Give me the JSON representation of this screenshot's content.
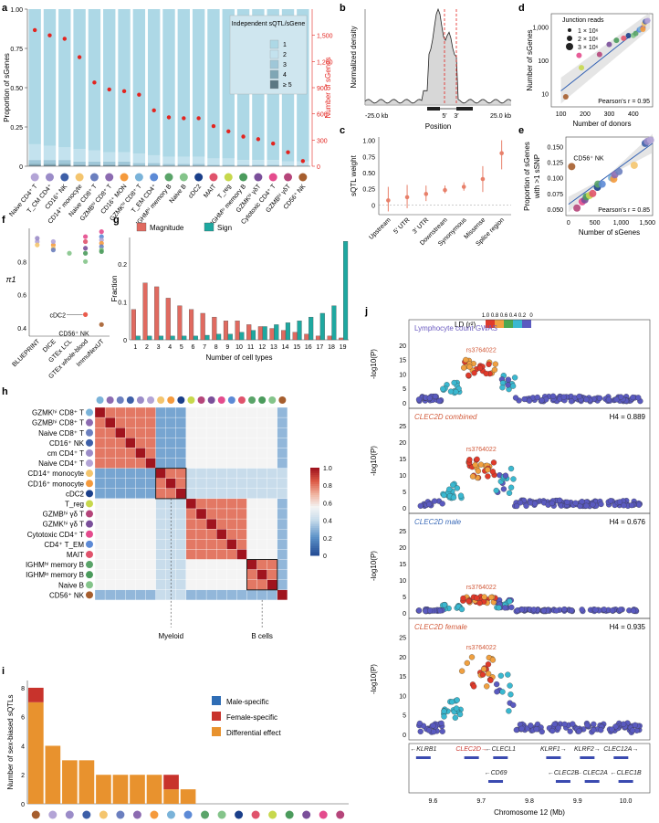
{
  "panel_letters": [
    "a",
    "b",
    "c",
    "d",
    "e",
    "f",
    "g",
    "h",
    "i",
    "j"
  ],
  "chart_data": [
    {
      "panel": "a",
      "type": "bar",
      "ylabel": "Proportion of sGenes",
      "ylabel_right": "Number of sGenes",
      "ylim": [
        0,
        1.0
      ],
      "ylim_right": [
        0,
        1800
      ],
      "yticks": [
        "0",
        "0.25",
        "0.50",
        "0.75",
        "1.00"
      ],
      "yticks_right": [
        "0",
        "300",
        "600",
        "900",
        "1,200",
        "1,500"
      ],
      "legend_title": "Independent sQTL/sGene",
      "legend_labels": [
        "1",
        "2",
        "3",
        "4",
        "≥ 5"
      ],
      "categories": [
        "Naive CD4⁺ T",
        "T_CM CD4⁺",
        "CD16⁺ NK",
        "CD14⁺ monocyte",
        "Naive CD8⁺ T",
        "GZMBʰⁱ CD8⁺ T",
        "CD16⁺ MON",
        "GZMKʰⁱ CD8⁺ T",
        "T_EM CD4⁺",
        "IGHMʰⁱ memory B",
        "Naive B",
        "cDC2",
        "MAIT",
        "T_reg",
        "IGHMˡᵒ memory B",
        "GZMKʰⁱ γδT",
        "Cytotoxic CD4⁺ T",
        "GZMBʰⁱ γδT",
        "CD56⁺ NK"
      ],
      "dot_colors": [
        "#b3a4d6",
        "#9b8cc8",
        "#3d5fa8",
        "#f4c56e",
        "#6b7fbf",
        "#8c6bb1",
        "#f59a3c",
        "#7ab3d9",
        "#5c8ad6",
        "#5aa469",
        "#84c48a",
        "#1a3f8a",
        "#e0536c",
        "#c7d84c",
        "#4b9b5c",
        "#7a4f9a",
        "#e44b8d",
        "#b5457a",
        "#a65e2e"
      ],
      "series": [
        {
          "name": "1",
          "values": [
            0.86,
            0.87,
            0.88,
            0.89,
            0.9,
            0.91,
            0.91,
            0.92,
            0.93,
            0.94,
            0.94,
            0.94,
            0.95,
            0.95,
            0.96,
            0.96,
            0.96,
            0.97,
            0.97
          ]
        },
        {
          "name": "2",
          "values": [
            0.1,
            0.09,
            0.08,
            0.08,
            0.07,
            0.06,
            0.06,
            0.06,
            0.05,
            0.045,
            0.045,
            0.045,
            0.04,
            0.04,
            0.03,
            0.03,
            0.03,
            0.025,
            0.025
          ]
        },
        {
          "name": "3",
          "values": [
            0.025,
            0.025,
            0.025,
            0.02,
            0.02,
            0.02,
            0.02,
            0.015,
            0.015,
            0.01,
            0.01,
            0.01,
            0.01,
            0.01,
            0.008,
            0.008,
            0.008,
            0.004,
            0.004
          ]
        },
        {
          "name": "4",
          "values": [
            0.01,
            0.01,
            0.01,
            0.007,
            0.007,
            0.007,
            0.007,
            0.004,
            0.004,
            0.004,
            0.004,
            0.004,
            0.0,
            0.0,
            0.002,
            0.002,
            0.002,
            0.001,
            0.001
          ]
        },
        {
          "name": "≥ 5",
          "values": [
            0.005,
            0.005,
            0.005,
            0.003,
            0.003,
            0.003,
            0.003,
            0.001,
            0.001,
            0.001,
            0.001,
            0.001,
            0.0,
            0.0,
            0.0,
            0.0,
            0.0,
            0.0,
            0.0
          ]
        }
      ],
      "nsgenes": [
        1560,
        1500,
        1460,
        1250,
        960,
        880,
        860,
        820,
        640,
        560,
        550,
        550,
        460,
        400,
        340,
        310,
        260,
        160,
        60
      ]
    },
    {
      "panel": "b",
      "type": "area",
      "xlabel": "Position",
      "ylabel": "Normalized density",
      "xticks": [
        "-25.0 kb",
        "5′",
        "3′",
        "25.0 kb"
      ]
    },
    {
      "panel": "c",
      "type": "scatter",
      "ylabel": "sQTL weight",
      "yticks": [
        "0",
        "0.25",
        "0.50",
        "0.75",
        "1.00"
      ],
      "ylim": [
        -0.15,
        1.05
      ],
      "categories": [
        "Upstream",
        "5′ UTR",
        "3′ UTR",
        "Downstream",
        "Synonymous",
        "Missense",
        "Splice region"
      ],
      "values": [
        0.07,
        0.12,
        0.17,
        0.23,
        0.28,
        0.4,
        0.8
      ],
      "err_lo": [
        -0.1,
        -0.05,
        0.06,
        0.18,
        0.22,
        0.2,
        0.55
      ],
      "err_hi": [
        0.28,
        0.31,
        0.3,
        0.3,
        0.35,
        0.6,
        1.0
      ]
    },
    {
      "panel": "d",
      "type": "scatter",
      "xlabel": "Number of donors",
      "ylabel": "Number of sGenes",
      "xticks": [
        "100",
        "200",
        "300",
        "400"
      ],
      "yticks": [
        "10",
        "100",
        "1,000"
      ],
      "legend_title": "Junction reads",
      "legend_labels": [
        "1 × 10⁶",
        "2 × 10⁶",
        "3 × 10⁶"
      ],
      "annotation": "Pearson's r = 0.95",
      "points": [
        {
          "x": 120,
          "y": 8,
          "c": "#a65e2e"
        },
        {
          "x": 175,
          "y": 140,
          "c": "#e44b8d"
        },
        {
          "x": 185,
          "y": 60,
          "c": "#c7d84c"
        },
        {
          "x": 260,
          "y": 150,
          "c": "#b5457a"
        },
        {
          "x": 300,
          "y": 300,
          "c": "#7a4f9a"
        },
        {
          "x": 330,
          "y": 400,
          "c": "#4b9b5c"
        },
        {
          "x": 360,
          "y": 460,
          "c": "#e0536c"
        },
        {
          "x": 380,
          "y": 550,
          "c": "#1a3f8a"
        },
        {
          "x": 400,
          "y": 560,
          "c": "#84c48a"
        },
        {
          "x": 410,
          "y": 640,
          "c": "#5aa469"
        },
        {
          "x": 425,
          "y": 820,
          "c": "#5c8ad6"
        },
        {
          "x": 430,
          "y": 880,
          "c": "#7ab3d9"
        },
        {
          "x": 440,
          "y": 960,
          "c": "#8c6bb1"
        },
        {
          "x": 445,
          "y": 1250,
          "c": "#f4c56e"
        },
        {
          "x": 450,
          "y": 1460,
          "c": "#3d5fa8"
        },
        {
          "x": 455,
          "y": 1500,
          "c": "#9b8cc8"
        },
        {
          "x": 460,
          "y": 1560,
          "c": "#b3a4d6"
        },
        {
          "x": 440,
          "y": 860,
          "c": "#f59a3c"
        }
      ]
    },
    {
      "panel": "e",
      "type": "scatter",
      "xlabel": "Number of sGenes",
      "ylabel": "Proportion of sGenes with >1 sSNP",
      "xticks": [
        "0",
        "500",
        "1,000",
        "1,500"
      ],
      "yticks": [
        "0.050",
        "0.075",
        "0.100",
        "0.125",
        "0.150"
      ],
      "annotation": "Pearson's r = 0.85",
      "label": "CD56⁺ NK",
      "points": [
        {
          "x": 60,
          "y": 0.118,
          "c": "#a65e2e"
        },
        {
          "x": 160,
          "y": 0.052,
          "c": "#b5457a"
        },
        {
          "x": 260,
          "y": 0.062,
          "c": "#e44b8d"
        },
        {
          "x": 310,
          "y": 0.065,
          "c": "#7a4f9a"
        },
        {
          "x": 340,
          "y": 0.07,
          "c": "#4b9b5c"
        },
        {
          "x": 400,
          "y": 0.072,
          "c": "#c7d84c"
        },
        {
          "x": 460,
          "y": 0.075,
          "c": "#e0536c"
        },
        {
          "x": 550,
          "y": 0.085,
          "c": "#1a3f8a"
        },
        {
          "x": 560,
          "y": 0.09,
          "c": "#5aa469"
        },
        {
          "x": 640,
          "y": 0.09,
          "c": "#5c8ad6"
        },
        {
          "x": 820,
          "y": 0.1,
          "c": "#7ab3d9"
        },
        {
          "x": 860,
          "y": 0.098,
          "c": "#f59a3c"
        },
        {
          "x": 880,
          "y": 0.105,
          "c": "#8c6bb1"
        },
        {
          "x": 960,
          "y": 0.11,
          "c": "#6b7fbf"
        },
        {
          "x": 1250,
          "y": 0.12,
          "c": "#f4c56e"
        },
        {
          "x": 1460,
          "y": 0.155,
          "c": "#3d5fa8"
        },
        {
          "x": 1500,
          "y": 0.158,
          "c": "#9b8cc8"
        },
        {
          "x": 1560,
          "y": 0.16,
          "c": "#b3a4d6"
        }
      ]
    },
    {
      "panel": "f",
      "type": "scatter",
      "ylabel": "π1",
      "yticks": [
        "0.4",
        "0.6",
        "0.8"
      ],
      "ylim": [
        0.35,
        1.0
      ],
      "categories": [
        "BLUEPRINT",
        "DICE",
        "GTEx LCL",
        "GTEx whole-blood",
        "ImmuNexUT"
      ],
      "labels": [
        "cDC2",
        "CD56⁺ NK"
      ],
      "points": [
        {
          "cat": 0,
          "y": 0.92,
          "c": "#b3a4d6"
        },
        {
          "cat": 0,
          "y": 0.9,
          "c": "#f4c56e"
        },
        {
          "cat": 0,
          "y": 0.94,
          "c": "#9b8cc8"
        },
        {
          "cat": 1,
          "y": 0.9,
          "c": "#f59a3c"
        },
        {
          "cat": 1,
          "y": 0.88,
          "c": "#f4c56e"
        },
        {
          "cat": 1,
          "y": 0.87,
          "c": "#6b7fbf"
        },
        {
          "cat": 1,
          "y": 0.92,
          "c": "#b3a4d6"
        },
        {
          "cat": 2,
          "y": 0.85,
          "c": "#84c48a"
        },
        {
          "cat": 3,
          "y": 0.95,
          "c": "#e44b8d"
        },
        {
          "cat": 3,
          "y": 0.92,
          "c": "#e0536c"
        },
        {
          "cat": 3,
          "y": 0.88,
          "c": "#7a4f9a"
        },
        {
          "cat": 3,
          "y": 0.85,
          "c": "#4b9b5c"
        },
        {
          "cat": 3,
          "y": 0.8,
          "c": "#84c48a"
        },
        {
          "cat": 3,
          "y": 0.48,
          "c": "#e84a3a"
        },
        {
          "cat": 4,
          "y": 0.98,
          "c": "#e44b8d"
        },
        {
          "cat": 4,
          "y": 0.95,
          "c": "#5c8ad6"
        },
        {
          "cat": 4,
          "y": 0.93,
          "c": "#b3a4d6"
        },
        {
          "cat": 4,
          "y": 0.91,
          "c": "#f59a3c"
        },
        {
          "cat": 4,
          "y": 0.89,
          "c": "#6b7fbf"
        },
        {
          "cat": 4,
          "y": 0.87,
          "c": "#84c48a"
        },
        {
          "cat": 4,
          "y": 0.86,
          "c": "#4b9b5c"
        },
        {
          "cat": 4,
          "y": 0.42,
          "c": "#a65e2e"
        }
      ]
    },
    {
      "panel": "g",
      "type": "bar",
      "xlabel": "Number of cell types",
      "ylabel": "Fraction",
      "yticks": [
        "0",
        "0.1",
        "0.2"
      ],
      "ylim": [
        0,
        0.27
      ],
      "categories": [
        "1",
        "2",
        "3",
        "4",
        "5",
        "6",
        "7",
        "8",
        "9",
        "10",
        "11",
        "12",
        "13",
        "14",
        "15",
        "16",
        "17",
        "18",
        "19"
      ],
      "series": [
        {
          "name": "Magnitude",
          "color": "#e06a60",
          "values": [
            0.08,
            0.15,
            0.14,
            0.11,
            0.09,
            0.08,
            0.07,
            0.06,
            0.05,
            0.05,
            0.04,
            0.035,
            0.03,
            0.025,
            0.02,
            0.015,
            0.01,
            0.01,
            0.005
          ]
        },
        {
          "name": "Sign",
          "color": "#1ea8a0",
          "values": [
            0.01,
            0.01,
            0.01,
            0.01,
            0.01,
            0.01,
            0.012,
            0.015,
            0.015,
            0.02,
            0.025,
            0.035,
            0.04,
            0.045,
            0.05,
            0.06,
            0.07,
            0.09,
            0.26
          ]
        }
      ]
    },
    {
      "panel": "h",
      "type": "heatmap",
      "rows": [
        "GZMKʰⁱ CD8⁺ T",
        "GZMBʰⁱ CD8⁺ T",
        "Naive CD8⁺ T",
        "CD16⁺ NK",
        "cm CD4⁺ T",
        "Naive CD4⁺ T",
        "CD14⁺ monocyte",
        "CD16⁺ monocyte",
        "cDC2",
        "T_reg",
        "GZMBʰⁱ γδ T",
        "GZMKʰⁱ γδ T",
        "Cytotoxic CD4⁺ T",
        "CD4⁺ T_EM",
        "MAIT",
        "IGHMʰⁱ memory B",
        "IGHMˡᵒ memory B",
        "Naive B",
        "CD56⁺ NK"
      ],
      "row_colors": [
        "#7ab3d9",
        "#8c6bb1",
        "#6b7fbf",
        "#3d5fa8",
        "#9b8cc8",
        "#b3a4d6",
        "#f4c56e",
        "#f59a3c",
        "#1a3f8a",
        "#c7d84c",
        "#b5457a",
        "#7a4f9a",
        "#e44b8d",
        "#5c8ad6",
        "#e0536c",
        "#5aa469",
        "#4b9b5c",
        "#84c48a",
        "#a65e2e"
      ],
      "colorbar_ticks": [
        "0",
        "0.2",
        "0.4",
        "0.6",
        "0.8",
        "1.0"
      ],
      "annotations": [
        "Myeloid",
        "B cells"
      ]
    },
    {
      "panel": "i",
      "type": "bar",
      "ylabel": "Number of sex-biased sQTLs",
      "yticks": [
        "0",
        "2",
        "4",
        "6",
        "8"
      ],
      "ylim": [
        0,
        8.5
      ],
      "legend_labels": [
        "Male-specific",
        "Female-specific",
        "Differential effect"
      ],
      "legend_colors": [
        "#2f6db5",
        "#c8332c",
        "#e8922e"
      ],
      "dot_colors": [
        "#a65e2e",
        "#b3a4d6",
        "#9b8cc8",
        "#3d5fa8",
        "#f4c56e",
        "#6b7fbf",
        "#8c6bb1",
        "#f59a3c",
        "#7ab3d9",
        "#5c8ad6",
        "#5aa469",
        "#84c48a",
        "#1a3f8a",
        "#e0536c",
        "#c7d84c",
        "#4b9b5c",
        "#7a4f9a",
        "#e44b8d",
        "#b5457a"
      ],
      "series": [
        {
          "name": "Differential effect",
          "values": [
            7,
            4,
            3,
            3,
            2,
            2,
            2,
            2,
            1,
            1,
            0,
            0,
            0,
            0,
            0,
            0,
            0,
            0,
            0
          ]
        },
        {
          "name": "Female-specific",
          "values": [
            1,
            0,
            0,
            0,
            0,
            0,
            0,
            0,
            1,
            0,
            0,
            0,
            0,
            0,
            0,
            0,
            0,
            0,
            0
          ]
        },
        {
          "name": "Male-specific",
          "values": [
            0,
            0,
            0,
            0,
            0,
            0,
            0,
            0,
            0,
            0,
            0,
            0,
            0,
            0,
            0,
            0,
            0,
            0,
            0
          ]
        }
      ]
    },
    {
      "panel": "j",
      "type": "scatter",
      "xlabel": "Chromosome 12 (Mb)",
      "xticks": [
        "9.6",
        "9.7",
        "9.8",
        "9.9",
        "10.0"
      ],
      "ylabel": "-log10(P)",
      "legend_title": "LD (r²)",
      "legend_ticks": [
        "1.0",
        "0.8",
        "0.6",
        "0.4",
        "0.2",
        "0"
      ],
      "snp": "rs3764022",
      "tracks": [
        {
          "title": "Lymphocyte count GWAS",
          "h4": "",
          "yticks": [
            "0",
            "5",
            "10",
            "15",
            "20"
          ],
          "ymax": 25
        },
        {
          "title": "CLEC2D combined",
          "h4": "H4 = 0.889",
          "yticks": [
            "0",
            "5",
            "10",
            "15",
            "20",
            "25"
          ],
          "ymax": 27
        },
        {
          "title": "CLEC2D male",
          "h4": "H4 = 0.676",
          "yticks": [
            "0",
            "5",
            "10",
            "15",
            "20",
            "25"
          ],
          "ymax": 27
        },
        {
          "title": "CLEC2D female",
          "h4": "H4 = 0.935",
          "yticks": [
            "0",
            "5",
            "10",
            "15",
            "20",
            "25"
          ],
          "ymax": 27
        }
      ],
      "genes": [
        "←KLRB1",
        "CLEC2D→",
        "←CLECL1",
        "KLRF1→",
        "KLRF2→",
        "CLEC12A→",
        "←CD69",
        "←CLEC2B",
        "←CLEC2A",
        "←CLEC1B"
      ]
    }
  ]
}
